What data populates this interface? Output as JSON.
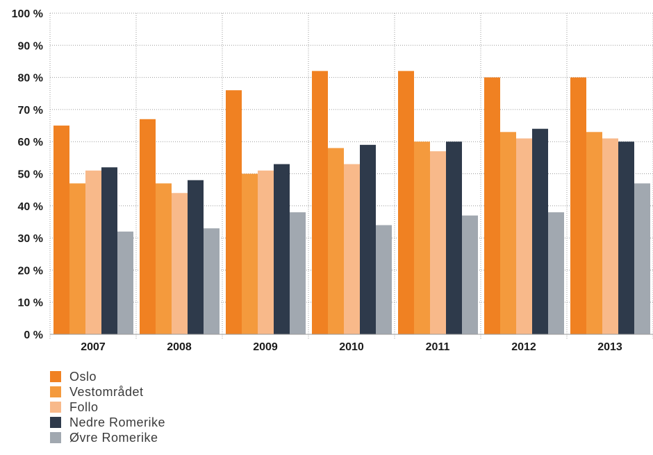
{
  "chart_data": {
    "type": "bar",
    "title": "",
    "xlabel": "",
    "ylabel": "",
    "categories": [
      "2007",
      "2008",
      "2009",
      "2010",
      "2011",
      "2012",
      "2013"
    ],
    "ylim": [
      0,
      100
    ],
    "y_ticks": [
      "0 %",
      "10 %",
      "20 %",
      "30 %",
      "40 %",
      "50 %",
      "60 %",
      "70 %",
      "80 %",
      "90 %",
      "100 %"
    ],
    "grid": true,
    "legend_position": "bottom-left",
    "series": [
      {
        "name": "Oslo",
        "color": "#f08122",
        "values": [
          65,
          67,
          76,
          82,
          82,
          80,
          80
        ]
      },
      {
        "name": "Vestområdet",
        "color": "#f49a3d",
        "values": [
          47,
          47,
          50,
          58,
          60,
          63,
          63
        ]
      },
      {
        "name": "Follo",
        "color": "#f8b98a",
        "values": [
          51,
          44,
          51,
          53,
          57,
          61,
          61
        ]
      },
      {
        "name": "Nedre Romerike",
        "color": "#2e3a4b",
        "values": [
          52,
          48,
          53,
          59,
          60,
          64,
          60
        ]
      },
      {
        "name": "Øvre Romerike",
        "color": "#a1a8b0",
        "values": [
          32,
          33,
          38,
          34,
          37,
          38,
          47
        ]
      }
    ]
  }
}
